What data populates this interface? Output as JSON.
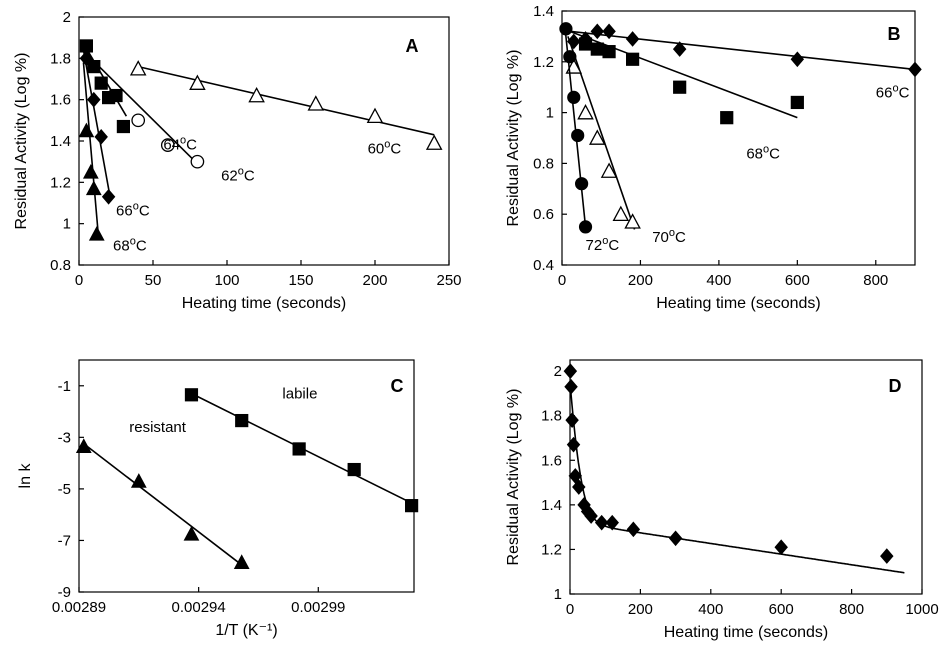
{
  "chart_data": [
    {
      "panel": "A",
      "type": "scatter",
      "xlabel": "Heating time (seconds)",
      "ylabel": "Residual Activity (Log %)",
      "xlim": [
        0,
        250
      ],
      "ylim": [
        0.8,
        2
      ],
      "xticks": [
        "0",
        "50",
        "100",
        "150",
        "200",
        "250"
      ],
      "yticks": [
        "0.8",
        "1",
        "1.2",
        "1.4",
        "1.6",
        "1.8",
        "2"
      ],
      "grid": false,
      "series": [
        {
          "name": "60°C",
          "marker": "triangle-open",
          "points": [
            [
              40,
              1.75
            ],
            [
              80,
              1.68
            ],
            [
              120,
              1.62
            ],
            [
              160,
              1.58
            ],
            [
              200,
              1.52
            ],
            [
              240,
              1.39
            ]
          ],
          "fit": [
            [
              40,
              1.76
            ],
            [
              240,
              1.43
            ]
          ]
        },
        {
          "name": "62°C",
          "marker": "circle-open",
          "points": [
            [
              40,
              1.5
            ],
            [
              60,
              1.38
            ],
            [
              80,
              1.3
            ]
          ],
          "fit": [
            [
              8,
              1.8
            ],
            [
              80,
              1.29
            ]
          ]
        },
        {
          "name": "64°C",
          "marker": "square-filled",
          "points": [
            [
              5,
              1.86
            ],
            [
              10,
              1.76
            ],
            [
              15,
              1.68
            ],
            [
              20,
              1.61
            ],
            [
              25,
              1.62
            ],
            [
              30,
              1.47
            ]
          ],
          "fit": [
            [
              4,
              1.86
            ],
            [
              32,
              1.52
            ]
          ]
        },
        {
          "name": "66°C",
          "marker": "diamond-filled",
          "points": [
            [
              5,
              1.8
            ],
            [
              10,
              1.6
            ],
            [
              15,
              1.42
            ],
            [
              20,
              1.13
            ]
          ],
          "fit": [
            [
              3,
              1.84
            ],
            [
              21,
              1.13
            ]
          ]
        },
        {
          "name": "68°C",
          "marker": "triangle-filled",
          "points": [
            [
              5,
              1.45
            ],
            [
              8,
              1.25
            ],
            [
              10,
              1.17
            ],
            [
              12,
              0.95
            ]
          ],
          "fit": [
            [
              3,
              1.78
            ],
            [
              13,
              0.95
            ]
          ]
        }
      ],
      "annotations": [
        {
          "text": "60°C",
          "x": 195,
          "y": 1.34
        },
        {
          "text": "62°C",
          "x": 96,
          "y": 1.21
        },
        {
          "text": "64°C",
          "x": 57,
          "y": 1.36
        },
        {
          "text": "66°C",
          "x": 25,
          "y": 1.04
        },
        {
          "text": "68°C",
          "x": 23,
          "y": 0.87
        }
      ]
    },
    {
      "panel": "B",
      "type": "scatter",
      "xlabel": "Heating time (seconds)",
      "ylabel": "Residual Activity (Log %)",
      "xlim": [
        0,
        900
      ],
      "ylim": [
        0.4,
        1.4
      ],
      "xticks": [
        "0",
        "200",
        "400",
        "600",
        "800"
      ],
      "yticks": [
        "0.4",
        "0.6",
        "0.8",
        "1",
        "1.2",
        "1.4"
      ],
      "grid": false,
      "series": [
        {
          "name": "66°C",
          "marker": "diamond-filled",
          "points": [
            [
              30,
              1.28
            ],
            [
              60,
              1.29
            ],
            [
              90,
              1.32
            ],
            [
              120,
              1.32
            ],
            [
              180,
              1.29
            ],
            [
              300,
              1.25
            ],
            [
              600,
              1.21
            ],
            [
              900,
              1.17
            ]
          ],
          "fit": [
            [
              20,
              1.32
            ],
            [
              900,
              1.17
            ]
          ]
        },
        {
          "name": "68°C",
          "marker": "square-filled",
          "points": [
            [
              60,
              1.27
            ],
            [
              90,
              1.25
            ],
            [
              120,
              1.24
            ],
            [
              180,
              1.21
            ],
            [
              300,
              1.1
            ],
            [
              420,
              0.98
            ],
            [
              600,
              1.04
            ]
          ],
          "fit": [
            [
              20,
              1.32
            ],
            [
              600,
              0.98
            ]
          ]
        },
        {
          "name": "70°C",
          "marker": "triangle-open",
          "points": [
            [
              30,
              1.18
            ],
            [
              60,
              1.0
            ],
            [
              90,
              0.9
            ],
            [
              120,
              0.77
            ],
            [
              150,
              0.6
            ],
            [
              180,
              0.57
            ]
          ],
          "fit": [
            [
              15,
              1.3
            ],
            [
              185,
              0.54
            ]
          ]
        },
        {
          "name": "72°C",
          "marker": "circle-filled",
          "points": [
            [
              10,
              1.33
            ],
            [
              20,
              1.22
            ],
            [
              30,
              1.06
            ],
            [
              40,
              0.91
            ],
            [
              50,
              0.72
            ],
            [
              60,
              0.55
            ]
          ],
          "fit": [
            [
              8,
              1.33
            ],
            [
              60,
              0.55
            ]
          ]
        }
      ],
      "annotations": [
        {
          "text": "66°C",
          "x": 800,
          "y": 1.06
        },
        {
          "text": "68°C",
          "x": 470,
          "y": 0.82
        },
        {
          "text": "70°C",
          "x": 230,
          "y": 0.49
        },
        {
          "text": "72°C",
          "x": 60,
          "y": 0.46
        }
      ]
    },
    {
      "panel": "C",
      "type": "scatter",
      "xlabel": "1/T  (K⁻¹)",
      "ylabel": "ln k",
      "xlim": [
        0.00289,
        0.00303
      ],
      "ylim": [
        -9,
        0
      ],
      "xticks": [
        "0.00289",
        "0.00294",
        "0.00299"
      ],
      "xtick_values": [
        0.00289,
        0.00294,
        0.00299
      ],
      "yticks": [
        "-1",
        "-3",
        "-5",
        "-7",
        "-9"
      ],
      "ytick_values": [
        -1,
        -3,
        -5,
        -7,
        -9
      ],
      "grid": false,
      "series": [
        {
          "name": "labile",
          "marker": "square-filled",
          "points": [
            [
              0.002937,
              -1.35
            ],
            [
              0.002958,
              -2.35
            ],
            [
              0.002982,
              -3.45
            ],
            [
              0.003005,
              -4.25
            ],
            [
              0.003029,
              -5.65
            ]
          ],
          "fit": [
            [
              0.002937,
              -1.3
            ],
            [
              0.003029,
              -5.55
            ]
          ]
        },
        {
          "name": "resistant",
          "marker": "triangle-filled",
          "points": [
            [
              0.002892,
              -3.35
            ],
            [
              0.002915,
              -4.7
            ],
            [
              0.002937,
              -6.75
            ],
            [
              0.002958,
              -7.85
            ]
          ],
          "fit": [
            [
              0.002892,
              -3.25
            ],
            [
              0.002958,
              -7.95
            ]
          ]
        }
      ],
      "annotations": [
        {
          "text": "labile",
          "x": 0.002975,
          "y": -1.5
        },
        {
          "text": "resistant",
          "x": 0.002911,
          "y": -2.8
        }
      ]
    },
    {
      "panel": "D",
      "type": "scatter",
      "xlabel": "Heating time (seconds)",
      "ylabel": "Residual Activity (Log %)",
      "xlim": [
        0,
        1000
      ],
      "ylim": [
        1,
        2.05
      ],
      "xticks": [
        "0",
        "200",
        "400",
        "600",
        "800",
        "1000"
      ],
      "yticks": [
        "1",
        "1.2",
        "1.4",
        "1.6",
        "1.8",
        "2"
      ],
      "grid": false,
      "series": [
        {
          "name": "",
          "marker": "diamond-filled",
          "points": [
            [
              1,
              2.0
            ],
            [
              3,
              1.93
            ],
            [
              6,
              1.78
            ],
            [
              10,
              1.67
            ],
            [
              15,
              1.53
            ],
            [
              25,
              1.48
            ],
            [
              40,
              1.4
            ],
            [
              50,
              1.37
            ],
            [
              60,
              1.35
            ],
            [
              90,
              1.32
            ],
            [
              120,
              1.32
            ],
            [
              180,
              1.29
            ],
            [
              300,
              1.25
            ],
            [
              600,
              1.21
            ],
            [
              900,
              1.17
            ]
          ],
          "fit_model": "biphasic"
        }
      ],
      "annotations": []
    }
  ]
}
